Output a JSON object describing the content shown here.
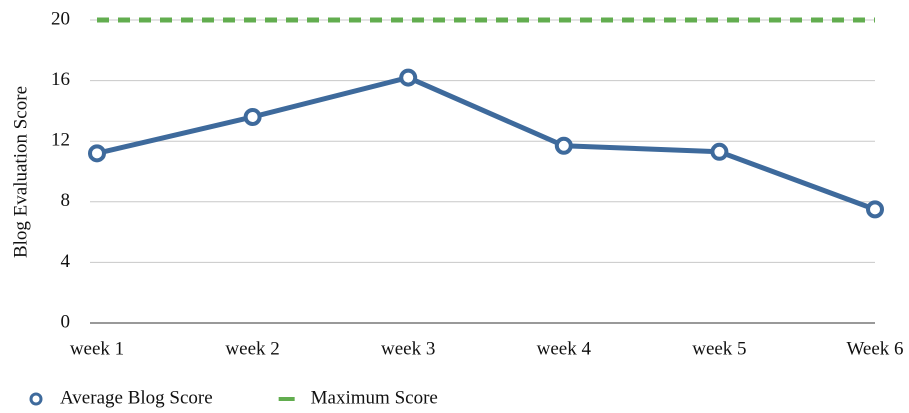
{
  "chart_data": {
    "type": "line",
    "y_label": "Blog Evaluation Score",
    "categories": [
      "week 1",
      "week 2",
      "week 3",
      "week 4",
      "week 5",
      "Week 6"
    ],
    "series": [
      {
        "name": "Average Blog Score",
        "color": "#3e6a9c",
        "marker": "circle",
        "style": "solid",
        "values": [
          11.2,
          13.6,
          16.2,
          11.7,
          11.3,
          7.5
        ]
      },
      {
        "name": "Maximum Score",
        "color": "#62ad4f",
        "marker": "none",
        "style": "dashed",
        "values": [
          20,
          20,
          20,
          20,
          20,
          20
        ]
      }
    ],
    "ylim": [
      0,
      20
    ],
    "yticks": [
      0,
      4,
      8,
      12,
      16,
      20
    ],
    "grid": true,
    "legend": "bottom-left"
  }
}
